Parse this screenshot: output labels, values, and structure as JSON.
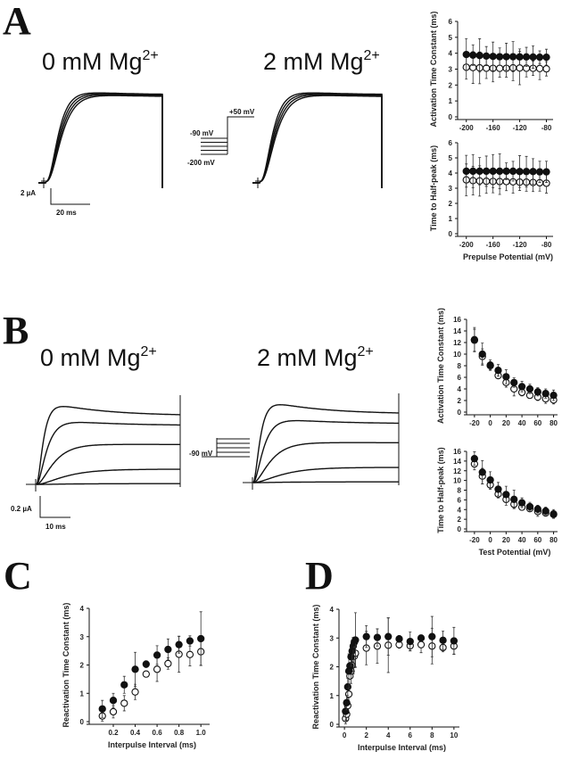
{
  "panels": {
    "A": {
      "letter": "A",
      "cond0": "0 mM Mg",
      "cond2": "2 mM Mg",
      "sup": "2+",
      "scale_current": "2 µA",
      "scale_time": "20 ms",
      "protocol": {
        "top": "+50 mV",
        "holding": "-90 mV",
        "bottom": "-200 mV"
      }
    },
    "B": {
      "letter": "B",
      "cond0": "0 mM Mg",
      "cond2": "2 mM Mg",
      "sup": "2+",
      "scale_current": "0.2 µA",
      "scale_time": "10 ms",
      "protocol": {
        "holding": "-90 mV"
      }
    },
    "C": {
      "letter": "C"
    },
    "D": {
      "letter": "D"
    }
  },
  "colors": {
    "ink": "#111111",
    "background": "#ffffff"
  },
  "chart_data": [
    {
      "id": "A1",
      "type": "scatter",
      "ylabel": "Activation Time Constant (ms)",
      "xlabel": "",
      "xlim": [
        -213,
        -70
      ],
      "ylim": [
        0,
        6
      ],
      "xticks": [
        -200,
        -160,
        -120,
        -80
      ],
      "xtick_labels": [
        "-200",
        "-160",
        "-120",
        "-80"
      ],
      "yticks": [
        0,
        1,
        2,
        3,
        4,
        5,
        6
      ],
      "ytick_labels": [
        "0",
        "1",
        "2",
        "3",
        "4",
        "5",
        "6"
      ],
      "x": [
        -200,
        -190,
        -180,
        -170,
        -160,
        -150,
        -140,
        -130,
        -120,
        -110,
        -100,
        -90,
        -80
      ],
      "series": [
        {
          "name": "0 mM Mg2+",
          "marker": "filled",
          "values": [
            3.92,
            3.88,
            3.86,
            3.82,
            3.8,
            3.78,
            3.78,
            3.78,
            3.77,
            3.77,
            3.76,
            3.75,
            3.75
          ],
          "err": [
            1.0,
            0.65,
            1.05,
            0.6,
            0.9,
            0.55,
            0.85,
            0.95,
            0.5,
            0.6,
            0.7,
            0.4,
            0.5
          ]
        },
        {
          "name": "2 mM Mg2+",
          "marker": "open",
          "values": [
            3.12,
            3.1,
            3.08,
            3.06,
            3.05,
            3.05,
            3.05,
            3.08,
            3.07,
            3.06,
            3.05,
            3.04,
            3.02
          ],
          "err": [
            0.75,
            1.0,
            1.0,
            0.65,
            0.85,
            0.55,
            0.55,
            0.8,
            1.05,
            0.55,
            0.45,
            0.7,
            0.45
          ]
        }
      ]
    },
    {
      "id": "A2",
      "type": "scatter",
      "ylabel": "Time to Half-peak (ms)",
      "xlabel": "Prepulse Potential (mV)",
      "xlim": [
        -213,
        -70
      ],
      "ylim": [
        0,
        6
      ],
      "xticks": [
        -200,
        -160,
        -120,
        -80
      ],
      "xtick_labels": [
        "-200",
        "-160",
        "-120",
        "-80"
      ],
      "yticks": [
        0,
        1,
        2,
        3,
        4,
        5,
        6
      ],
      "ytick_labels": [
        "0",
        "1",
        "2",
        "3",
        "4",
        "5",
        "6"
      ],
      "x": [
        -200,
        -190,
        -180,
        -170,
        -160,
        -150,
        -140,
        -130,
        -120,
        -110,
        -100,
        -90,
        -80
      ],
      "series": [
        {
          "name": "0 mM Mg2+",
          "marker": "filled",
          "values": [
            4.12,
            4.12,
            4.12,
            4.12,
            4.12,
            4.12,
            4.12,
            4.12,
            4.1,
            4.1,
            4.1,
            4.08,
            4.08
          ],
          "err": [
            1.05,
            1.1,
            0.9,
            1.0,
            1.1,
            1.15,
            0.55,
            0.65,
            1.05,
            1.0,
            0.85,
            0.7,
            0.7
          ]
        },
        {
          "name": "2 mM Mg2+",
          "marker": "open",
          "values": [
            3.55,
            3.5,
            3.48,
            3.46,
            3.45,
            3.44,
            3.44,
            3.42,
            3.4,
            3.4,
            3.38,
            3.36,
            3.33
          ],
          "err": [
            1.05,
            0.95,
            1.0,
            0.8,
            0.75,
            0.85,
            0.6,
            0.75,
            0.55,
            0.6,
            0.6,
            0.55,
            0.65
          ]
        }
      ]
    },
    {
      "id": "B1",
      "type": "scatter",
      "ylabel": "Activation Time Constant (ms)",
      "xlabel": "",
      "xlim": [
        -30,
        85
      ],
      "ylim": [
        0,
        16
      ],
      "xticks": [
        -20,
        0,
        20,
        40,
        60,
        80
      ],
      "xtick_labels": [
        "-20",
        "0",
        "20",
        "40",
        "60",
        "80"
      ],
      "yticks": [
        0,
        2,
        4,
        6,
        8,
        10,
        12,
        14,
        16
      ],
      "ytick_labels": [
        "0",
        "2",
        "4",
        "6",
        "8",
        "10",
        "12",
        "14",
        "16"
      ],
      "x": [
        -20,
        -10,
        0,
        10,
        20,
        30,
        40,
        50,
        60,
        70,
        80
      ],
      "series": [
        {
          "name": "0 mM Mg2+",
          "marker": "filled",
          "values": [
            12.5,
            10.0,
            8.1,
            7.2,
            6.1,
            5.1,
            4.4,
            4.0,
            3.5,
            3.2,
            2.9
          ],
          "err": [
            2.1,
            1.9,
            0.9,
            1.0,
            1.2,
            0.8,
            0.9,
            0.8,
            0.7,
            0.8,
            0.9
          ]
        },
        {
          "name": "2 mM Mg2+",
          "marker": "open",
          "values": [
            12.4,
            9.6,
            8.0,
            6.3,
            5.1,
            4.0,
            3.4,
            2.9,
            2.6,
            2.3,
            2.1
          ],
          "err": [
            1.9,
            1.3,
            0.7,
            0.5,
            0.8,
            1.2,
            0.6,
            0.5,
            0.6,
            0.8,
            0.7
          ]
        }
      ]
    },
    {
      "id": "B2",
      "type": "scatter",
      "ylabel": "Time to Half-peak (ms)",
      "xlabel": "Test Potential (mV)",
      "xlim": [
        -30,
        85
      ],
      "ylim": [
        0,
        16
      ],
      "xticks": [
        -20,
        0,
        20,
        40,
        60,
        80
      ],
      "xtick_labels": [
        "-20",
        "0",
        "20",
        "40",
        "60",
        "80"
      ],
      "yticks": [
        0,
        2,
        4,
        6,
        8,
        10,
        12,
        14,
        16
      ],
      "ytick_labels": [
        "0",
        "2",
        "4",
        "6",
        "8",
        "10",
        "12",
        "14",
        "16"
      ],
      "x": [
        -20,
        -10,
        0,
        10,
        20,
        30,
        40,
        50,
        60,
        70,
        80
      ],
      "series": [
        {
          "name": "0 mM Mg2+",
          "marker": "filled",
          "values": [
            14.5,
            11.7,
            10.1,
            8.2,
            7.1,
            6.1,
            5.4,
            4.6,
            4.1,
            3.7,
            3.1
          ],
          "err": [
            1.4,
            2.4,
            1.7,
            1.4,
            1.7,
            1.9,
            1.0,
            0.9,
            0.8,
            0.8,
            0.9
          ]
        },
        {
          "name": "2 mM Mg2+",
          "marker": "open",
          "values": [
            13.4,
            10.9,
            9.1,
            7.2,
            6.1,
            5.1,
            4.5,
            4.2,
            3.6,
            3.3,
            3.0
          ],
          "err": [
            1.2,
            1.6,
            0.9,
            0.8,
            1.2,
            0.8,
            0.6,
            0.6,
            1.0,
            0.6,
            0.6
          ]
        }
      ]
    },
    {
      "id": "C",
      "type": "scatter",
      "ylabel": "Reactivation Time Constant (ms)",
      "xlabel": "Interpulse Interval (ms)",
      "xlim": [
        -0.02,
        1.08
      ],
      "ylim": [
        0,
        4
      ],
      "xticks": [
        0.2,
        0.4,
        0.6,
        0.8,
        1.0
      ],
      "xtick_labels": [
        "0.2",
        "0.4",
        "0.6",
        "0.8",
        "1.0"
      ],
      "yticks": [
        0,
        1,
        2,
        3,
        4
      ],
      "ytick_labels": [
        "0",
        "1",
        "2",
        "3",
        "4"
      ],
      "x": [
        0.1,
        0.2,
        0.3,
        0.4,
        0.5,
        0.6,
        0.7,
        0.8,
        0.9,
        1.0
      ],
      "series": [
        {
          "name": "0 mM Mg2+",
          "marker": "filled",
          "values": [
            0.45,
            0.75,
            1.3,
            1.85,
            2.03,
            2.35,
            2.55,
            2.72,
            2.85,
            2.93
          ],
          "err": [
            0.3,
            0.25,
            0.3,
            0.6,
            0.12,
            0.33,
            0.37,
            0.3,
            0.18,
            0.95
          ]
        },
        {
          "name": "2 mM Mg2+",
          "marker": "open",
          "values": [
            0.2,
            0.35,
            0.65,
            1.05,
            1.68,
            1.85,
            2.05,
            2.38,
            2.37,
            2.47
          ],
          "err": [
            0.18,
            0.22,
            0.27,
            0.27,
            0.1,
            0.43,
            0.2,
            0.63,
            0.4,
            0.48
          ]
        }
      ]
    },
    {
      "id": "D",
      "type": "scatter",
      "ylabel": "Reactivation Time Constant (ms)",
      "xlabel": "Interpulse Interval (ms)",
      "xlim": [
        -0.5,
        10.5
      ],
      "ylim": [
        0,
        4
      ],
      "xticks": [
        0,
        2,
        4,
        6,
        8,
        10
      ],
      "xtick_labels": [
        "0",
        "2",
        "4",
        "6",
        "8",
        "10"
      ],
      "yticks": [
        0,
        1,
        2,
        3,
        4
      ],
      "ytick_labels": [
        "0",
        "1",
        "2",
        "3",
        "4"
      ],
      "x": [
        0.1,
        0.2,
        0.3,
        0.4,
        0.5,
        0.6,
        0.7,
        0.8,
        0.9,
        1.0,
        2,
        3,
        4,
        5,
        6,
        7,
        8,
        9,
        10
      ],
      "series": [
        {
          "name": "0 mM Mg2+",
          "marker": "filled",
          "values": [
            0.45,
            0.75,
            1.3,
            1.85,
            2.03,
            2.35,
            2.55,
            2.72,
            2.85,
            2.93,
            3.05,
            3.02,
            3.05,
            2.97,
            2.88,
            3.0,
            3.05,
            2.92,
            2.9
          ],
          "err": [
            0.3,
            0.25,
            0.3,
            0.6,
            0.12,
            0.33,
            0.37,
            0.3,
            0.18,
            0.95,
            0.38,
            0.3,
            0.65,
            0.12,
            0.33,
            0.1,
            0.7,
            0.32,
            0.47
          ]
        },
        {
          "name": "2 mM Mg2+",
          "marker": "open",
          "values": [
            0.2,
            0.35,
            0.65,
            1.05,
            1.68,
            1.85,
            2.05,
            2.38,
            2.37,
            2.47,
            2.65,
            2.72,
            2.75,
            2.77,
            2.73,
            2.77,
            2.72,
            2.67,
            2.72
          ],
          "err": [
            0.18,
            0.22,
            0.27,
            0.27,
            0.1,
            0.43,
            0.2,
            0.63,
            0.4,
            0.48,
            0.58,
            0.6,
            0.95,
            0.12,
            0.17,
            0.28,
            0.62,
            0.15,
            0.28
          ]
        }
      ]
    }
  ]
}
